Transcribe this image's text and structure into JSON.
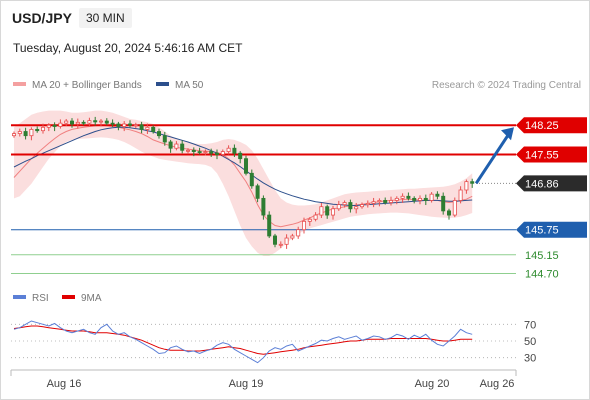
{
  "header": {
    "symbol": "USD/JPY",
    "timeframe": "30 MIN",
    "datetime": "Tuesday, August 20, 2024 5:46:16 AM CET"
  },
  "legend": {
    "items": [
      {
        "label": "MA 20 + Bollinger Bands",
        "color": "#f08080"
      },
      {
        "label": "MA 50",
        "color": "#2c4f8c"
      }
    ],
    "credit": "Research © 2024 Trading Central"
  },
  "rsi_legend": {
    "items": [
      {
        "label": "RSI",
        "color": "#5b7fd6"
      },
      {
        "label": "9MA",
        "color": "#e00000"
      }
    ]
  },
  "chart_data": [
    {
      "type": "candlestick",
      "instrument": "USD/JPY",
      "timeframe": "30 MIN",
      "ylim": [
        144.45,
        148.95
      ],
      "x_ticks": [
        "Aug 16",
        "Aug 19",
        "Aug 20",
        "Aug 26"
      ],
      "levels": [
        {
          "label": "148.25",
          "value": 148.25,
          "kind": "resistance",
          "color": "#e00000"
        },
        {
          "label": "147.55",
          "value": 147.55,
          "kind": "resistance",
          "color": "#e00000"
        },
        {
          "label": "146.86",
          "value": 146.86,
          "kind": "current",
          "color": "#333333"
        },
        {
          "label": "145.75",
          "value": 145.75,
          "kind": "support",
          "color": "#1f5fae"
        },
        {
          "label": "145.15",
          "value": 145.15,
          "kind": "support",
          "color": "#2e8b2e"
        },
        {
          "label": "144.70",
          "value": 144.7,
          "kind": "support",
          "color": "#2e8b2e"
        }
      ],
      "close": [
        148.05,
        148.1,
        148.0,
        148.15,
        148.12,
        148.2,
        148.25,
        148.22,
        148.3,
        148.35,
        148.28,
        148.32,
        148.3,
        148.36,
        148.33,
        148.35,
        148.3,
        148.28,
        148.22,
        148.28,
        148.25,
        148.26,
        148.15,
        148.2,
        148.1,
        148.0,
        147.85,
        147.7,
        147.8,
        147.65,
        147.65,
        147.62,
        147.6,
        147.62,
        147.58,
        147.55,
        147.62,
        147.7,
        147.58,
        147.45,
        147.1,
        146.8,
        146.5,
        146.1,
        145.6,
        145.4,
        145.4,
        145.55,
        145.6,
        145.75,
        145.95,
        146.0,
        146.1,
        146.3,
        146.1,
        146.25,
        146.35,
        146.4,
        146.25,
        146.3,
        146.35,
        146.38,
        146.42,
        146.45,
        146.4,
        146.45,
        146.5,
        146.55,
        146.5,
        146.45,
        146.5,
        146.45,
        146.6,
        146.55,
        146.2,
        146.1,
        146.45,
        146.7,
        146.9,
        146.86
      ],
      "ma20": [
        147.0,
        147.15,
        147.3,
        147.45,
        147.58,
        147.7,
        147.82,
        147.93,
        148.03,
        148.1,
        148.15,
        148.18,
        148.2,
        148.22,
        148.24,
        148.25,
        148.24,
        148.22,
        148.2,
        148.17,
        148.14,
        148.1,
        148.05,
        147.98,
        147.9,
        147.85,
        147.8,
        147.76,
        147.72,
        147.7,
        147.68,
        147.66,
        147.64,
        147.63,
        147.62,
        147.6,
        147.55,
        147.45,
        147.3,
        147.1,
        146.9,
        146.65,
        146.35,
        146.1,
        145.95,
        145.85,
        145.82,
        145.85,
        145.88,
        145.92,
        145.98,
        146.03,
        146.1,
        146.15,
        146.2,
        146.25,
        146.27,
        146.3,
        146.32,
        146.34,
        146.36,
        146.38,
        146.4,
        146.42,
        146.44,
        146.45,
        146.46,
        146.47,
        146.48,
        146.47,
        146.46,
        146.45,
        146.45,
        146.45,
        146.42,
        146.4,
        146.42,
        146.45,
        146.48,
        146.55
      ],
      "bb_upper": [
        148.2,
        148.3,
        148.4,
        148.5,
        148.55,
        148.58,
        148.6,
        148.6,
        148.6,
        148.58,
        148.55,
        148.55,
        148.56,
        148.58,
        148.6,
        148.6,
        148.58,
        148.55,
        148.5,
        148.45,
        148.4,
        148.38,
        148.35,
        148.32,
        148.28,
        148.2,
        148.1,
        148.0,
        147.92,
        147.88,
        147.85,
        147.82,
        147.8,
        147.8,
        147.82,
        147.85,
        147.9,
        147.92,
        147.9,
        147.85,
        147.78,
        147.65,
        147.45,
        147.2,
        146.95,
        146.7,
        146.5,
        146.4,
        146.35,
        146.33,
        146.33,
        146.34,
        146.36,
        146.4,
        146.45,
        146.5,
        146.55,
        146.6,
        146.62,
        146.64,
        146.65,
        146.66,
        146.67,
        146.68,
        146.69,
        146.7,
        146.71,
        146.72,
        146.73,
        146.73,
        146.74,
        146.75,
        146.76,
        146.77,
        146.78,
        146.8,
        146.84,
        146.9,
        146.98,
        147.1
      ],
      "bb_lower": [
        146.5,
        146.55,
        146.7,
        146.85,
        147.05,
        147.25,
        147.45,
        147.6,
        147.75,
        147.85,
        147.9,
        147.92,
        147.93,
        147.94,
        147.95,
        147.96,
        147.95,
        147.93,
        147.9,
        147.85,
        147.78,
        147.7,
        147.62,
        147.55,
        147.5,
        147.45,
        147.42,
        147.4,
        147.38,
        147.36,
        147.34,
        147.33,
        147.32,
        147.3,
        147.25,
        147.1,
        146.85,
        146.55,
        146.2,
        145.85,
        145.55,
        145.35,
        145.2,
        145.12,
        145.12,
        145.2,
        145.3,
        145.42,
        145.55,
        145.65,
        145.72,
        145.78,
        145.82,
        145.86,
        145.9,
        145.94,
        145.98,
        146.02,
        146.06,
        146.08,
        146.1,
        146.12,
        146.13,
        146.14,
        146.15,
        146.16,
        146.16,
        146.15,
        146.14,
        146.12,
        146.1,
        146.08,
        146.06,
        146.05,
        146.04,
        146.03,
        146.04,
        146.06,
        146.1,
        146.15
      ],
      "ma50": [
        147.25,
        147.32,
        147.39,
        147.45,
        147.52,
        147.58,
        147.64,
        147.7,
        147.76,
        147.82,
        147.88,
        147.94,
        148.0,
        148.05,
        148.1,
        148.14,
        148.17,
        148.19,
        148.2,
        148.2,
        148.19,
        148.17,
        148.15,
        148.12,
        148.09,
        148.05,
        148.01,
        147.97,
        147.93,
        147.89,
        147.85,
        147.8,
        147.75,
        147.7,
        147.64,
        147.58,
        147.51,
        147.43,
        147.35,
        147.26,
        147.16,
        147.06,
        146.96,
        146.87,
        146.79,
        146.72,
        146.66,
        146.61,
        146.56,
        146.52,
        146.48,
        146.45,
        146.42,
        146.4,
        146.38,
        146.36,
        146.35,
        146.34,
        146.33,
        146.33,
        146.34,
        146.35,
        146.36,
        146.37,
        146.38,
        146.39,
        146.4,
        146.41,
        146.42,
        146.43,
        146.44,
        146.45,
        146.45,
        146.45,
        146.44,
        146.43,
        146.43,
        146.44,
        146.45,
        146.46
      ]
    },
    {
      "type": "line",
      "title": "RSI",
      "ylim": [
        20,
        80
      ],
      "y_ticks": [
        "70",
        "50",
        "30"
      ],
      "series": [
        {
          "name": "RSI",
          "values": [
            64,
            66,
            70,
            74,
            72,
            70,
            68,
            71,
            66,
            62,
            60,
            62,
            64,
            60,
            58,
            66,
            70,
            62,
            58,
            60,
            55,
            52,
            48,
            44,
            40,
            35,
            36,
            42,
            44,
            40,
            37,
            38,
            35,
            38,
            40,
            45,
            48,
            46,
            40,
            36,
            32,
            28,
            24,
            30,
            38,
            42,
            40,
            44,
            46,
            38,
            41,
            44,
            47,
            51,
            50,
            53,
            55,
            52,
            54,
            56,
            51,
            53,
            56,
            55,
            52,
            54,
            58,
            56,
            52,
            57,
            54,
            58,
            51,
            46,
            44,
            50,
            56,
            64,
            60,
            58
          ]
        },
        {
          "name": "9MA",
          "values": [
            65,
            66,
            67,
            68,
            68,
            67,
            66,
            65,
            64,
            63,
            62,
            62,
            62,
            61,
            60,
            60,
            60,
            59,
            58,
            57,
            55,
            53,
            51,
            48,
            45,
            42,
            40,
            39,
            39,
            39,
            38,
            38,
            38,
            39,
            40,
            41,
            42,
            43,
            42,
            41,
            39,
            37,
            35,
            34,
            35,
            36,
            37,
            38,
            39,
            40,
            42,
            43,
            44,
            45,
            46,
            47,
            48,
            49,
            50,
            50,
            51,
            52,
            52,
            52,
            52,
            53,
            53,
            53,
            53,
            53,
            53,
            53,
            52,
            51,
            50,
            50,
            51,
            52,
            52,
            52
          ]
        }
      ]
    }
  ]
}
